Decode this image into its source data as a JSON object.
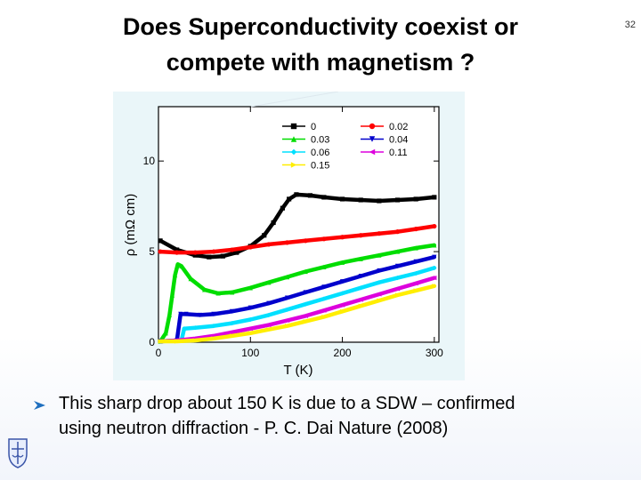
{
  "slide": {
    "title_line1": "Does Superconductivity coexist or",
    "title_line2": "compete with magnetism ?",
    "number": "32",
    "bullet_line1": "This sharp drop about 150 K is due to a SDW – confirmed",
    "bullet_line2": "using neutron diffraction - P. C. Dai  Nature (2008)"
  },
  "chart_data": {
    "type": "line",
    "title": "",
    "xlabel": "T (K)",
    "ylabel": "ρ (mΩ cm)",
    "xlim": [
      0,
      305
    ],
    "ylim": [
      0,
      13
    ],
    "xticks": [
      0,
      100,
      200,
      300
    ],
    "yticks": [
      0,
      5,
      10
    ],
    "legend_position": "top-right",
    "series": [
      {
        "name": "0",
        "color": "#000000",
        "marker": "square",
        "points": [
          [
            2,
            5.6
          ],
          [
            20,
            5.1
          ],
          [
            40,
            4.8
          ],
          [
            55,
            4.7
          ],
          [
            70,
            4.75
          ],
          [
            85,
            4.95
          ],
          [
            100,
            5.3
          ],
          [
            115,
            5.9
          ],
          [
            125,
            6.6
          ],
          [
            135,
            7.4
          ],
          [
            142,
            7.9
          ],
          [
            150,
            8.15
          ],
          [
            165,
            8.1
          ],
          [
            180,
            8.0
          ],
          [
            200,
            7.9
          ],
          [
            220,
            7.85
          ],
          [
            240,
            7.8
          ],
          [
            260,
            7.85
          ],
          [
            280,
            7.9
          ],
          [
            300,
            8.0
          ]
        ]
      },
      {
        "name": "0.02",
        "color": "#ff0000",
        "marker": "circle",
        "points": [
          [
            2,
            5.0
          ],
          [
            20,
            4.95
          ],
          [
            40,
            4.95
          ],
          [
            60,
            5.0
          ],
          [
            80,
            5.1
          ],
          [
            100,
            5.25
          ],
          [
            120,
            5.4
          ],
          [
            140,
            5.5
          ],
          [
            160,
            5.6
          ],
          [
            180,
            5.7
          ],
          [
            200,
            5.8
          ],
          [
            220,
            5.9
          ],
          [
            240,
            6.0
          ],
          [
            260,
            6.1
          ],
          [
            280,
            6.25
          ],
          [
            300,
            6.4
          ]
        ]
      },
      {
        "name": "0.03",
        "color": "#00dd00",
        "marker": "triangle-up",
        "points": [
          [
            2,
            0.05
          ],
          [
            8,
            0.5
          ],
          [
            12,
            1.5
          ],
          [
            15,
            2.6
          ],
          [
            18,
            3.7
          ],
          [
            21,
            4.3
          ],
          [
            25,
            4.2
          ],
          [
            35,
            3.5
          ],
          [
            50,
            2.9
          ],
          [
            65,
            2.7
          ],
          [
            80,
            2.75
          ],
          [
            100,
            3.0
          ],
          [
            120,
            3.3
          ],
          [
            140,
            3.6
          ],
          [
            160,
            3.9
          ],
          [
            180,
            4.15
          ],
          [
            200,
            4.4
          ],
          [
            220,
            4.6
          ],
          [
            240,
            4.8
          ],
          [
            260,
            5.0
          ],
          [
            280,
            5.2
          ],
          [
            300,
            5.35
          ]
        ]
      },
      {
        "name": "0.04",
        "color": "#0000cc",
        "marker": "triangle-down",
        "points": [
          [
            2,
            0.05
          ],
          [
            20,
            0.1
          ],
          [
            24,
            1.55
          ],
          [
            30,
            1.55
          ],
          [
            45,
            1.5
          ],
          [
            60,
            1.55
          ],
          [
            80,
            1.7
          ],
          [
            100,
            1.9
          ],
          [
            120,
            2.15
          ],
          [
            140,
            2.45
          ],
          [
            160,
            2.75
          ],
          [
            180,
            3.05
          ],
          [
            200,
            3.35
          ],
          [
            220,
            3.65
          ],
          [
            240,
            3.95
          ],
          [
            260,
            4.2
          ],
          [
            280,
            4.45
          ],
          [
            300,
            4.7
          ]
        ]
      },
      {
        "name": "0.06",
        "color": "#00e0ff",
        "marker": "diamond",
        "points": [
          [
            2,
            0.05
          ],
          [
            25,
            0.1
          ],
          [
            28,
            0.75
          ],
          [
            40,
            0.8
          ],
          [
            60,
            0.9
          ],
          [
            80,
            1.05
          ],
          [
            100,
            1.25
          ],
          [
            120,
            1.5
          ],
          [
            140,
            1.8
          ],
          [
            160,
            2.1
          ],
          [
            180,
            2.4
          ],
          [
            200,
            2.7
          ],
          [
            220,
            3.0
          ],
          [
            240,
            3.3
          ],
          [
            260,
            3.55
          ],
          [
            280,
            3.8
          ],
          [
            300,
            4.1
          ]
        ]
      },
      {
        "name": "0.11",
        "color": "#dd00dd",
        "marker": "triangle-left",
        "points": [
          [
            2,
            0.05
          ],
          [
            20,
            0.1
          ],
          [
            40,
            0.2
          ],
          [
            60,
            0.35
          ],
          [
            80,
            0.55
          ],
          [
            100,
            0.75
          ],
          [
            120,
            0.95
          ],
          [
            140,
            1.2
          ],
          [
            160,
            1.45
          ],
          [
            180,
            1.75
          ],
          [
            200,
            2.05
          ],
          [
            220,
            2.35
          ],
          [
            240,
            2.65
          ],
          [
            260,
            2.95
          ],
          [
            280,
            3.25
          ],
          [
            300,
            3.55
          ]
        ]
      },
      {
        "name": "0.15",
        "color": "#ffee00",
        "marker": "triangle-right",
        "points": [
          [
            2,
            0.05
          ],
          [
            20,
            0.05
          ],
          [
            40,
            0.1
          ],
          [
            60,
            0.2
          ],
          [
            80,
            0.35
          ],
          [
            100,
            0.5
          ],
          [
            120,
            0.7
          ],
          [
            140,
            0.9
          ],
          [
            160,
            1.15
          ],
          [
            180,
            1.4
          ],
          [
            200,
            1.7
          ],
          [
            220,
            2.0
          ],
          [
            240,
            2.3
          ],
          [
            260,
            2.6
          ],
          [
            280,
            2.85
          ],
          [
            300,
            3.1
          ]
        ]
      }
    ]
  }
}
